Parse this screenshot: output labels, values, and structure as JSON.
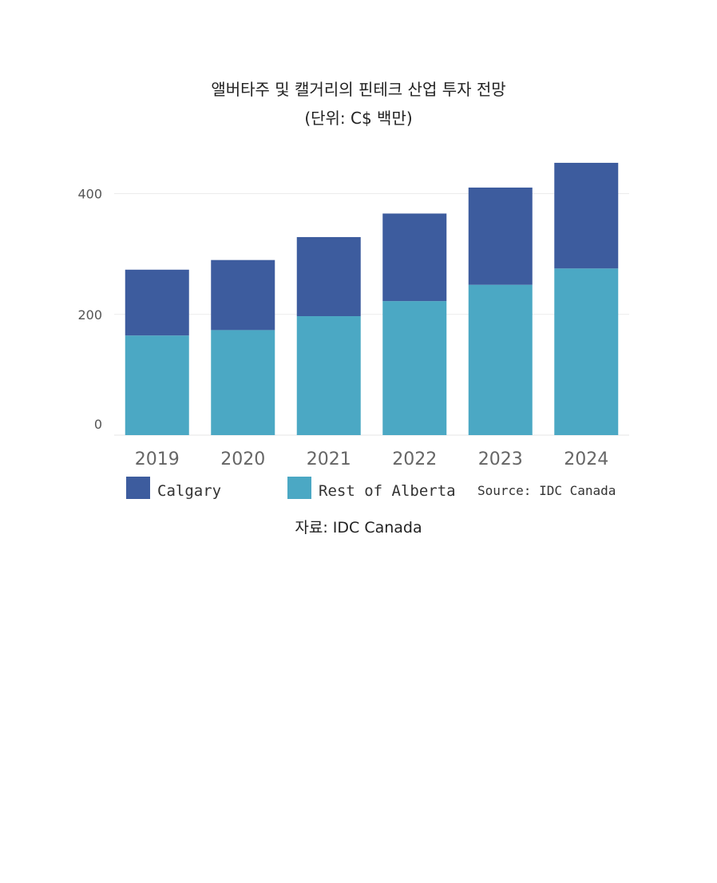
{
  "chart_data": {
    "type": "bar",
    "stacked": true,
    "title": "앨버타주 및 캘거리의 핀테크 산업 투자 전망",
    "subtitle": "(단위: C$ 백만)",
    "categories": [
      "2019",
      "2020",
      "2021",
      "2022",
      "2023",
      "2024"
    ],
    "series": [
      {
        "name": "Rest of Alberta",
        "values": [
          165,
          174,
          197,
          222,
          249,
          276
        ],
        "color": "#4BA8C4"
      },
      {
        "name": "Calgary",
        "values": [
          109,
          116,
          131,
          145,
          161,
          175
        ],
        "color": "#3D5C9E"
      }
    ],
    "legend_order": [
      "Calgary",
      "Rest of Alberta"
    ],
    "source_note": "Source: IDC Canada",
    "y_ticks": [
      "0",
      "200",
      "400"
    ],
    "ylim": [
      0,
      480
    ],
    "grid": true,
    "legend_position": "bottom"
  },
  "caption": "자료: IDC Canada"
}
